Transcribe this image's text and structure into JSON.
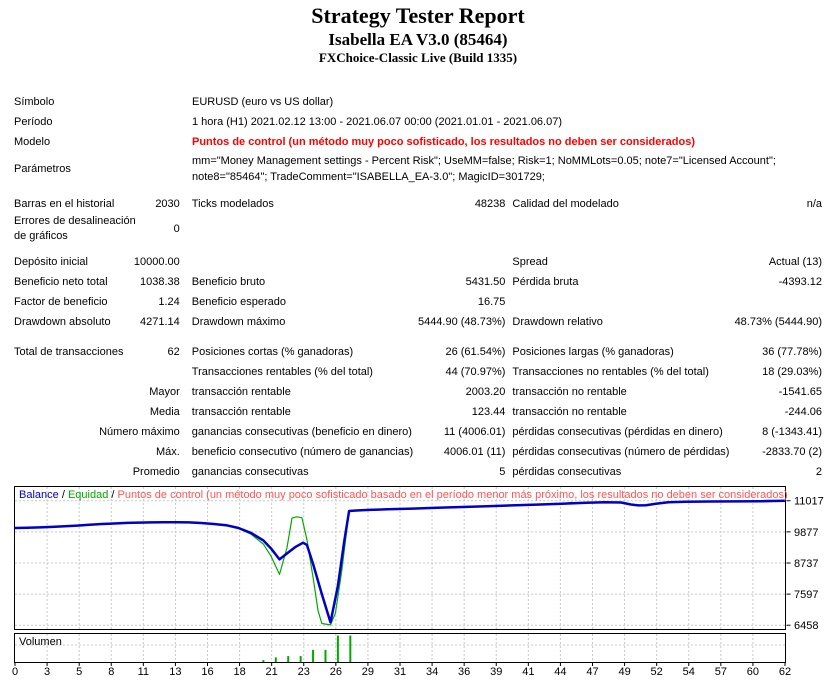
{
  "header": {
    "title": "Strategy Tester Report",
    "subtitle": "Isabella EA V3.0 (85464)",
    "build": "FXChoice-Classic Live (Build 1335)"
  },
  "colors": {
    "balance": "#0000C8",
    "equity": "#00AA00",
    "model_warning": "#FF0000",
    "legend_warning": "#FF5555",
    "grid": "#C8C8C8",
    "pane_border": "#000000",
    "volume_bar": "#00AA00"
  },
  "info_rows": [
    {
      "label": "Símbolo",
      "value": "EURUSD (euro vs US dollar)",
      "warn": false,
      "multi": false
    },
    {
      "label": "Período",
      "value": "1 hora (H1) 2021.02.12 13:00 - 2021.06.07 00:00 (2021.01.01 - 2021.06.07)",
      "warn": false,
      "multi": false
    },
    {
      "label": "Modelo",
      "value": "Puntos de control (un método muy poco sofisticado, los resultados no deben ser considerados)",
      "warn": true,
      "multi": false
    },
    {
      "label": "Parámetros",
      "value": "mm=\"Money Management settings - Percent Risk\"; UseMM=false; Risk=1; NoMMLots=0.05; note7=\"Licensed Account\"; note8=\"85464\"; TradeComment=\"ISABELLA_EA-3.0\"; MagicID=301729;",
      "warn": false,
      "multi": true
    }
  ],
  "stat_rows": [
    {
      "a": "Barras en el historial",
      "b": "2030",
      "c": "Ticks modelados",
      "d": "48238",
      "e": "Calidad del modelado",
      "f": "n/a",
      "gap": "",
      "tall": false
    },
    {
      "a": "Errores de desalineación de gráficos",
      "b": "0",
      "c": "",
      "d": "",
      "e": "",
      "f": "",
      "gap": "",
      "tall": true
    },
    {
      "a": "Depósito inicial",
      "b": "10000.00",
      "c": "",
      "d": "",
      "e": "Spread",
      "f": "Actual (13)",
      "gap": "gap8",
      "tall": false
    },
    {
      "a": "Beneficio neto total",
      "b": "1038.38",
      "c": "Beneficio bruto",
      "d": "5431.50",
      "e": "Pérdida bruta",
      "f": "-4393.12",
      "gap": "",
      "tall": false
    },
    {
      "a": "Factor de beneficio",
      "b": "1.24",
      "c": "Beneficio esperado",
      "d": "16.75",
      "e": "",
      "f": "",
      "gap": "",
      "tall": false
    },
    {
      "a": "Drawdown absoluto",
      "b": "4271.14",
      "c": "Drawdown máximo",
      "d": "5444.90 (48.73%)",
      "e": "Drawdown relativo",
      "f": "48.73% (5444.90)",
      "gap": "",
      "tall": false
    },
    {
      "a": "Total de transacciones",
      "b": "62",
      "c": "Posiciones cortas (% ganadoras)",
      "d": "26 (61.54%)",
      "e": "Posiciones largas (% ganadoras)",
      "f": "36 (77.78%)",
      "gap": "gap10",
      "tall": false
    },
    {
      "a": "",
      "b": "",
      "c": "Transacciones rentables (% del total)",
      "d": "44 (70.97%)",
      "e": "Transacciones no rentables (% del total)",
      "f": "18 (29.03%)",
      "gap": "",
      "tall": false
    },
    {
      "a": "",
      "b": "Mayor",
      "c": "transacción rentable",
      "d": "2003.20",
      "e": "transacción no rentable",
      "f": "-1541.65",
      "gap": "",
      "tall": false
    },
    {
      "a": "",
      "b": "Media",
      "c": "transacción rentable",
      "d": "123.44",
      "e": "transacción no rentable",
      "f": "-244.06",
      "gap": "",
      "tall": false
    },
    {
      "a": "",
      "b": "Número máximo",
      "c": "ganancias consecutivas (beneficio en dinero)",
      "d": "11 (4006.01)",
      "e": "pérdidas consecutivas (pérdidas en dinero)",
      "f": "8 (-1343.41)",
      "gap": "",
      "tall": false
    },
    {
      "a": "",
      "b": "Máx.",
      "c": "beneficio consecutivo (número de ganancias)",
      "d": "4006.01 (11)",
      "e": "pérdidas consecutivas (número de pérdidas)",
      "f": "-2833.70 (2)",
      "gap": "",
      "tall": false
    },
    {
      "a": "",
      "b": "Promedio",
      "c": "ganancias consecutivas",
      "d": "5",
      "e": "pérdidas consecutivas",
      "f": "2",
      "gap": "",
      "tall": false
    }
  ],
  "chart_data": {
    "type": "line",
    "title": "",
    "legend": [
      "Balance",
      "Equidad",
      "Puntos de control (un método muy poco sofisticado basado en el período menor más próximo, los resultados no deben ser considerados)"
    ],
    "legend_separator": " / ",
    "legend_position": "top-left-inside",
    "grid": true,
    "xlabel": "",
    "ylabel": "",
    "xlim": [
      0,
      62
    ],
    "ylim": [
      6320,
      11520
    ],
    "x_ticks": [
      0,
      3,
      5,
      8,
      11,
      13,
      16,
      18,
      21,
      23,
      26,
      29,
      31,
      34,
      36,
      39,
      41,
      44,
      47,
      49,
      52,
      54,
      57,
      60,
      62
    ],
    "y_ticks": [
      11017,
      9877,
      8737,
      7597,
      6458
    ],
    "series": [
      {
        "name": "Balance",
        "points": [
          [
            0,
            10020
          ],
          [
            1,
            10028
          ],
          [
            2,
            10040
          ],
          [
            3,
            10058
          ],
          [
            4,
            10080
          ],
          [
            5,
            10108
          ],
          [
            6,
            10140
          ],
          [
            7,
            10165
          ],
          [
            8,
            10185
          ],
          [
            9,
            10205
          ],
          [
            10,
            10215
          ],
          [
            11,
            10225
          ],
          [
            12,
            10230
          ],
          [
            13,
            10228
          ],
          [
            14,
            10222
          ],
          [
            15,
            10200
          ],
          [
            16,
            10165
          ],
          [
            17,
            10120
          ],
          [
            18,
            10020
          ],
          [
            19,
            9840
          ],
          [
            20,
            9560
          ],
          [
            20.6,
            9280
          ],
          [
            21.3,
            8870
          ],
          [
            22,
            9120
          ],
          [
            22.6,
            9330
          ],
          [
            23.2,
            9480
          ],
          [
            23.5,
            9400
          ],
          [
            24,
            8700
          ],
          [
            24.7,
            7600
          ],
          [
            25.4,
            6560
          ],
          [
            26,
            7900
          ],
          [
            26.5,
            9500
          ],
          [
            26.9,
            10640
          ],
          [
            27.5,
            10660
          ],
          [
            28.5,
            10680
          ],
          [
            30,
            10705
          ],
          [
            32,
            10730
          ],
          [
            34,
            10758
          ],
          [
            36,
            10788
          ],
          [
            38,
            10818
          ],
          [
            40,
            10848
          ],
          [
            42,
            10875
          ],
          [
            44,
            10905
          ],
          [
            46,
            10942
          ],
          [
            47.5,
            10958
          ],
          [
            48.8,
            10952
          ],
          [
            49.6,
            10880
          ],
          [
            50.2,
            10845
          ],
          [
            50.8,
            10855
          ],
          [
            51.6,
            10905
          ],
          [
            52.6,
            10962
          ],
          [
            54,
            10982
          ],
          [
            56,
            10988
          ],
          [
            58,
            10992
          ],
          [
            60,
            10998
          ],
          [
            62,
            11017
          ]
        ]
      },
      {
        "name": "Equidad",
        "points": [
          [
            0,
            10020
          ],
          [
            1,
            10028
          ],
          [
            2,
            10040
          ],
          [
            3,
            10058
          ],
          [
            4,
            10080
          ],
          [
            5,
            10112
          ],
          [
            6,
            10155
          ],
          [
            7,
            10165
          ],
          [
            8,
            10185
          ],
          [
            9,
            10215
          ],
          [
            10,
            10215
          ],
          [
            11,
            10225
          ],
          [
            12,
            10242
          ],
          [
            13,
            10228
          ],
          [
            14,
            10222
          ],
          [
            15,
            10205
          ],
          [
            16,
            10178
          ],
          [
            17,
            10120
          ],
          [
            18,
            10005
          ],
          [
            19,
            9790
          ],
          [
            20,
            9430
          ],
          [
            20.6,
            9000
          ],
          [
            21.3,
            8320
          ],
          [
            21.9,
            9300
          ],
          [
            22.3,
            10380
          ],
          [
            22.7,
            10430
          ],
          [
            23.1,
            10395
          ],
          [
            23.5,
            9600
          ],
          [
            24,
            8200
          ],
          [
            24.4,
            7000
          ],
          [
            24.7,
            6520
          ],
          [
            25.4,
            6470
          ],
          [
            25.8,
            6900
          ],
          [
            26.3,
            8400
          ],
          [
            26.9,
            10640
          ],
          [
            27.5,
            10660
          ],
          [
            28.5,
            10680
          ],
          [
            30,
            10705
          ],
          [
            32,
            10730
          ],
          [
            34,
            10758
          ],
          [
            36,
            10788
          ],
          [
            38,
            10818
          ],
          [
            40,
            10848
          ],
          [
            42,
            10875
          ],
          [
            44,
            10905
          ],
          [
            44.8,
            10958
          ],
          [
            45.3,
            10940
          ],
          [
            46,
            10942
          ],
          [
            47.5,
            10958
          ],
          [
            48.8,
            10952
          ],
          [
            49.6,
            10880
          ],
          [
            50.2,
            10845
          ],
          [
            50.8,
            10855
          ],
          [
            51.6,
            10905
          ],
          [
            52.6,
            10962
          ],
          [
            54,
            10982
          ],
          [
            56,
            10988
          ],
          [
            58,
            10992
          ],
          [
            59.5,
            11008
          ],
          [
            60.5,
            11030
          ],
          [
            61.2,
            11025
          ],
          [
            62,
            11017
          ]
        ]
      }
    ],
    "volume": {
      "label": "Volumen",
      "bars": [
        [
          20,
          0.07
        ],
        [
          21,
          0.17
        ],
        [
          22,
          0.22
        ],
        [
          23,
          0.22
        ],
        [
          24,
          0.45
        ],
        [
          25,
          0.45
        ],
        [
          26,
          0.98
        ],
        [
          27,
          0.98
        ]
      ]
    }
  }
}
